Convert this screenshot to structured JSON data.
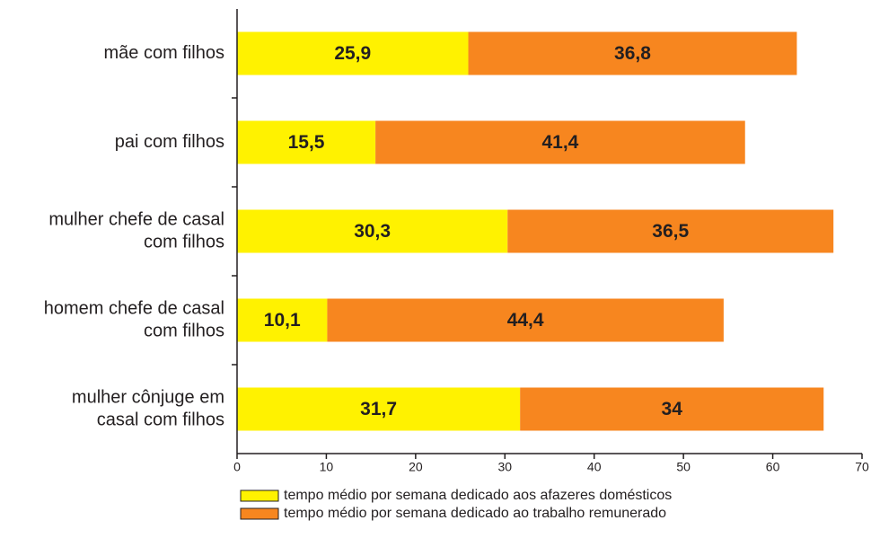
{
  "chart_data": {
    "type": "stacked_horizontal_bar",
    "categories": [
      [
        "mãe com filhos"
      ],
      [
        "pai com filhos"
      ],
      [
        "mulher chefe de casal",
        "com filhos"
      ],
      [
        "homem chefe de casal",
        "com filhos"
      ],
      [
        "mulher cônjuge em",
        "casal com filhos"
      ]
    ],
    "series": [
      {
        "name": "tempo médio por semana dedicado aos afazeres domésticos",
        "color": "#fff200",
        "values": [
          25.9,
          15.5,
          30.3,
          10.1,
          31.7
        ],
        "value_labels": [
          "25,9",
          "15,5",
          "30,3",
          "10,1",
          "31,7"
        ]
      },
      {
        "name": "tempo médio por semana dedicado ao trabalho remunerado",
        "color": "#f7861f",
        "values": [
          36.8,
          41.4,
          36.5,
          44.4,
          34
        ],
        "value_labels": [
          "36,8",
          "41,4",
          "36,5",
          "44,4",
          "34"
        ]
      }
    ],
    "xlim": [
      0,
      70
    ],
    "xticks": [
      0,
      10,
      20,
      30,
      40,
      50,
      60,
      70
    ]
  }
}
